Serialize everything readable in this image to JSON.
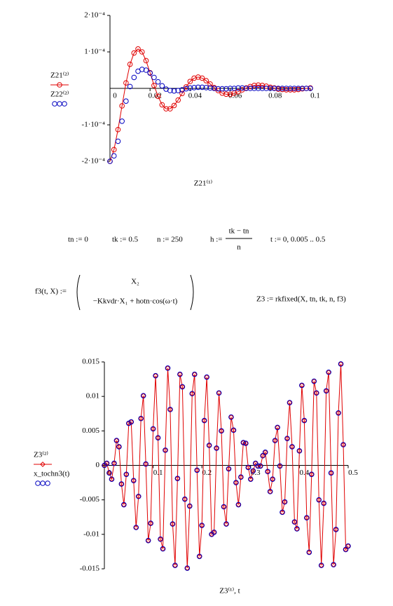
{
  "chart_data": [
    {
      "type": "line",
      "xlabel": "Z21⁽¹⁾",
      "x": [
        0,
        0.002,
        0.004,
        0.006,
        0.008,
        0.01,
        0.012,
        0.014,
        0.016,
        0.018,
        0.02,
        0.022,
        0.024,
        0.026,
        0.028,
        0.03,
        0.032,
        0.034,
        0.036,
        0.038,
        0.04,
        0.042,
        0.044,
        0.046,
        0.048,
        0.05,
        0.052,
        0.054,
        0.056,
        0.058,
        0.06,
        0.062,
        0.064,
        0.066,
        0.068,
        0.07,
        0.072,
        0.074,
        0.076,
        0.078,
        0.08,
        0.082,
        0.084,
        0.086,
        0.088,
        0.09,
        0.092,
        0.094,
        0.096,
        0.098,
        0.1
      ],
      "series": [
        {
          "name": "Z21⁽²⁾",
          "color": "#e00000",
          "line": true,
          "marker": "circle",
          "values": [
            -0.0002,
            -0.000168,
            -0.000113,
            -4.8e-05,
            1.5e-05,
            6.6e-05,
            9.7e-05,
            0.000108,
            0.0001,
            7.6e-05,
            4.3e-05,
            8e-06,
            -2.2e-05,
            -4.5e-05,
            -5.6e-05,
            -5.6e-05,
            -4.7e-05,
            -3.2e-05,
            -1.4e-05,
            4e-06,
            1.9e-05,
            2.8e-05,
            3.1e-05,
            2.8e-05,
            2.1e-05,
            1.2e-05,
            2e-06,
            -6e-06,
            -1.3e-05,
            -1.6e-05,
            -1.6e-05,
            -1.3e-05,
            -9e-06,
            -4e-06,
            1e-06,
            5e-06,
            8e-06,
            9e-06,
            8e-06,
            6e-06,
            3e-06,
            1e-06,
            -2e-06,
            -3e-06,
            -4e-06,
            -4e-06,
            -4e-06,
            -3e-06,
            -1e-06,
            0,
            1e-06
          ]
        },
        {
          "name": "Z22⁽²⁾",
          "color": "#0000c0",
          "line": false,
          "marker": "circle",
          "values": [
            -0.0002,
            -0.000185,
            -0.000145,
            -9e-05,
            -3.5e-05,
            5e-06,
            3e-05,
            4.7e-05,
            5.2e-05,
            5e-05,
            4.2e-05,
            3e-05,
            1.8e-05,
            7e-06,
            -2e-06,
            -6e-06,
            -7e-06,
            -6e-06,
            -4e-06,
            -1e-06,
            1e-06,
            2e-06,
            3e-06,
            3e-06,
            2e-06,
            1e-06,
            0,
            -1e-06,
            -1e-06,
            -1e-06,
            0,
            0,
            1e-06,
            1e-06,
            0,
            0,
            0,
            0,
            0,
            0,
            0,
            0,
            0,
            0,
            0,
            0,
            0,
            0,
            0,
            0,
            0
          ]
        }
      ],
      "xlim": [
        0,
        0.1
      ],
      "ylim": [
        -0.0002,
        0.0002
      ],
      "xticks": [
        0,
        0.02,
        0.04,
        0.06,
        0.08,
        0.1
      ],
      "yticks": [
        {
          "value": 0.0002,
          "label": "2·10⁻⁴"
        },
        {
          "value": 0.0001,
          "label": "1·10⁻⁴"
        },
        {
          "value": -0.0001,
          "label": "-1·10⁻⁴"
        },
        {
          "value": -0.0002,
          "label": "-2·10⁻⁴"
        }
      ]
    },
    {
      "type": "line",
      "xlabel": "Z3⁽¹⁾, t",
      "x": [
        0,
        0.005,
        0.01,
        0.015,
        0.02,
        0.025,
        0.03,
        0.035,
        0.04,
        0.045,
        0.05,
        0.055,
        0.06,
        0.065,
        0.07,
        0.075,
        0.08,
        0.085,
        0.09,
        0.095,
        0.1,
        0.105,
        0.11,
        0.115,
        0.12,
        0.125,
        0.13,
        0.135,
        0.14,
        0.145,
        0.15,
        0.155,
        0.16,
        0.165,
        0.17,
        0.175,
        0.18,
        0.185,
        0.19,
        0.195,
        0.2,
        0.205,
        0.21,
        0.215,
        0.22,
        0.225,
        0.23,
        0.235,
        0.24,
        0.245,
        0.25,
        0.255,
        0.26,
        0.265,
        0.27,
        0.275,
        0.28,
        0.285,
        0.29,
        0.295,
        0.3,
        0.305,
        0.31,
        0.315,
        0.32,
        0.325,
        0.33,
        0.335,
        0.34,
        0.345,
        0.35,
        0.355,
        0.36,
        0.365,
        0.37,
        0.375,
        0.38,
        0.385,
        0.39,
        0.395,
        0.4,
        0.405,
        0.41,
        0.415,
        0.42,
        0.425,
        0.43,
        0.435,
        0.44,
        0.445,
        0.45,
        0.455,
        0.46,
        0.465,
        0.47,
        0.475,
        0.48,
        0.485,
        0.49,
        0.495,
        0.5
      ],
      "series": [
        {
          "name": "Z3⁽²⁾",
          "color": "#e00000",
          "line": true,
          "marker": "diamond",
          "values": [
            0,
            0.0003,
            -0.0011,
            -0.002,
            0.0003,
            0.0036,
            0.0027,
            -0.0027,
            -0.0057,
            -0.0013,
            0.0061,
            0.0063,
            -0.0022,
            -0.009,
            -0.0045,
            0.0068,
            0.0101,
            0.0002,
            -0.0109,
            -0.0084,
            0.0053,
            0.013,
            0.004,
            -0.0107,
            -0.0121,
            0.0022,
            0.0141,
            0.0081,
            -0.0085,
            -0.0145,
            -0.0019,
            0.0132,
            0.0114,
            -0.0049,
            -0.0149,
            -0.0059,
            0.0104,
            0.0132,
            -0.0007,
            -0.0132,
            -0.0087,
            0.0065,
            0.0128,
            0.0029,
            -0.01,
            -0.0097,
            0.0025,
            0.0105,
            0.005,
            -0.006,
            -0.0085,
            -0.0005,
            0.007,
            0.0051,
            -0.0025,
            -0.0057,
            -0.0017,
            0.0033,
            0.0032,
            -0.0003,
            -0.002,
            -0.0008,
            0.0003,
            -0.0001,
            -0.0001,
            0.0014,
            0.0019,
            -0.0009,
            -0.0038,
            -0.002,
            0.0036,
            0.0055,
            -0.0001,
            -0.0068,
            -0.0053,
            0.0039,
            0.0091,
            0.0027,
            -0.0082,
            -0.0092,
            0.0021,
            0.0116,
            0.0065,
            -0.0076,
            -0.0126,
            -0.0013,
            0.0122,
            0.0105,
            -0.005,
            -0.0145,
            -0.0055,
            0.0108,
            0.0135,
            -0.0011,
            -0.0144,
            -0.0093,
            0.0076,
            0.0147,
            0.003,
            -0.0122,
            -0.0117
          ]
        },
        {
          "name": "x_tochn3(t)",
          "color": "#0000c0",
          "line": false,
          "marker": "circle",
          "values": [
            0,
            0.0003,
            -0.0011,
            -0.002,
            0.0003,
            0.0036,
            0.0027,
            -0.0027,
            -0.0057,
            -0.0013,
            0.0061,
            0.0063,
            -0.0022,
            -0.009,
            -0.0045,
            0.0068,
            0.0101,
            0.0002,
            -0.0109,
            -0.0084,
            0.0053,
            0.013,
            0.004,
            -0.0107,
            -0.0121,
            0.0022,
            0.0141,
            0.0081,
            -0.0085,
            -0.0145,
            -0.0019,
            0.0132,
            0.0114,
            -0.0049,
            -0.0149,
            -0.0059,
            0.0104,
            0.0132,
            -0.0007,
            -0.0132,
            -0.0087,
            0.0065,
            0.0128,
            0.0029,
            -0.01,
            -0.0097,
            0.0025,
            0.0105,
            0.005,
            -0.006,
            -0.0085,
            -0.0005,
            0.007,
            0.0051,
            -0.0025,
            -0.0057,
            -0.0017,
            0.0033,
            0.0032,
            -0.0003,
            -0.002,
            -0.0008,
            0.0003,
            -0.0001,
            -0.0001,
            0.0014,
            0.0019,
            -0.0009,
            -0.0038,
            -0.002,
            0.0036,
            0.0055,
            -0.0001,
            -0.0068,
            -0.0053,
            0.0039,
            0.0091,
            0.0027,
            -0.0082,
            -0.0092,
            0.0021,
            0.0116,
            0.0065,
            -0.0076,
            -0.0126,
            -0.0013,
            0.0122,
            0.0105,
            -0.005,
            -0.0145,
            -0.0055,
            0.0108,
            0.0135,
            -0.0011,
            -0.0144,
            -0.0093,
            0.0076,
            0.0147,
            0.003,
            -0.0122,
            -0.0117
          ]
        }
      ],
      "xlim": [
        0,
        0.5
      ],
      "ylim": [
        -0.015,
        0.015
      ],
      "xticks": [
        0,
        0.1,
        0.2,
        0.3,
        0.4,
        0.5
      ],
      "yticks": [
        0.015,
        0.01,
        0.005,
        0,
        -0.005,
        -0.01,
        -0.015
      ]
    }
  ],
  "formulas": {
    "tn": "tn := 0",
    "tk": "tk := 0.5",
    "n": "n := 250",
    "h_lhs": "h :=",
    "h_num": "tk − tn",
    "h_den": "n",
    "t": "t := 0, 0.005 .. 0.5",
    "f3_lhs": "f3(t, X) :=",
    "f3_row1": "X₂",
    "f3_row2": "−Kkvdr·X₁ + hotn·cos(ω·t)",
    "z3": "Z3 := rkfixed(X, tn, tk, n, f3)"
  }
}
